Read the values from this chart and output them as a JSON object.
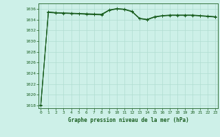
{
  "title": "Graphe pression niveau de la mer (hPa)",
  "bg_color": "#cdf0e8",
  "grid_color": "#b0ddd0",
  "line_color": "#1a5e20",
  "marker_color": "#1a5e20",
  "xlim": [
    -0.3,
    23.3
  ],
  "ylim": [
    1017.5,
    1037.0
  ],
  "yticks": [
    1018,
    1020,
    1022,
    1024,
    1026,
    1028,
    1030,
    1032,
    1034,
    1036
  ],
  "xticks": [
    0,
    1,
    2,
    3,
    4,
    5,
    6,
    7,
    8,
    9,
    10,
    11,
    12,
    13,
    14,
    15,
    16,
    17,
    18,
    19,
    20,
    21,
    22,
    23
  ],
  "series1": [
    1018.0,
    1035.3,
    1035.2,
    1035.15,
    1035.1,
    1035.05,
    1034.95,
    1034.9,
    1034.85,
    1035.7,
    1035.95,
    1035.85,
    1035.45,
    1034.15,
    1033.95,
    1034.45,
    1034.65,
    1034.75,
    1034.75,
    1034.75,
    1034.75,
    1034.65,
    1034.55,
    1034.45
  ],
  "series2": [
    1018.1,
    1035.4,
    1035.25,
    1035.2,
    1035.15,
    1035.1,
    1035.05,
    1035.0,
    1034.95,
    1035.75,
    1036.0,
    1035.9,
    1035.5,
    1034.2,
    1034.0,
    1034.5,
    1034.7,
    1034.8,
    1034.8,
    1034.8,
    1034.8,
    1034.7,
    1034.6,
    1034.5
  ],
  "series3": [
    1018.05,
    1035.45,
    1035.3,
    1035.25,
    1035.2,
    1035.15,
    1035.1,
    1035.05,
    1035.0,
    1035.8,
    1036.05,
    1035.95,
    1035.55,
    1034.25,
    1034.05,
    1034.55,
    1034.75,
    1034.85,
    1034.85,
    1034.85,
    1034.85,
    1034.75,
    1034.65,
    1034.55
  ]
}
